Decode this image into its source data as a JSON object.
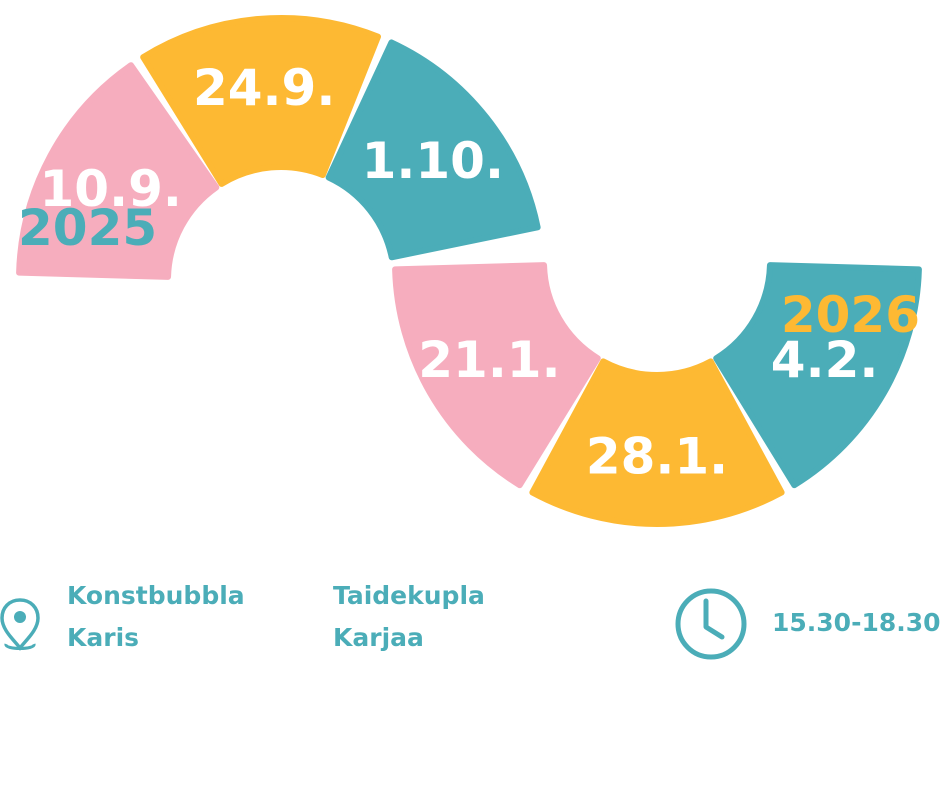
{
  "colors": {
    "pink": "#f6adbe",
    "yellow": "#fdb933",
    "teal": "#4badb8",
    "text": "#4badb8",
    "white": "#ffffff"
  },
  "years": {
    "start": "2025",
    "end": "2026"
  },
  "dates": [
    {
      "label": "10.9.",
      "color": "pink"
    },
    {
      "label": "24.9.",
      "color": "yellow"
    },
    {
      "label": "1.10.",
      "color": "teal"
    },
    {
      "label": "21.1.",
      "color": "pink"
    },
    {
      "label": "28.1.",
      "color": "yellow"
    },
    {
      "label": "4.2.",
      "color": "teal"
    }
  ],
  "location_sv": {
    "name": "Konstbubbla",
    "place": "Karis"
  },
  "location_fi": {
    "name": "Taidekupla",
    "place": "Karjaa"
  },
  "time": "15.30-18.30",
  "icons": {
    "location": "location-pin-icon",
    "time": "clock-icon"
  }
}
